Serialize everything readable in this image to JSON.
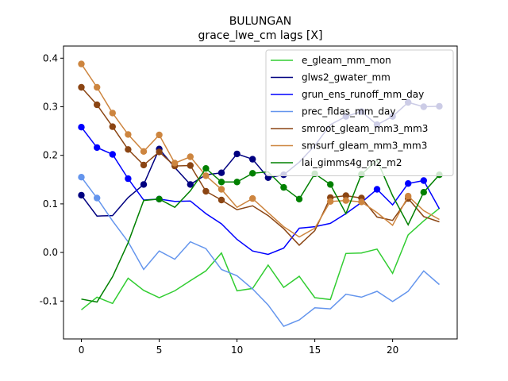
{
  "chart_data": {
    "type": "line",
    "title": "BULUNGAN",
    "subtitle": "grace_lwe_cm lags [X]",
    "xlabel": "",
    "ylabel": "",
    "xlim": [
      -1.15,
      24.15
    ],
    "ylim": [
      -0.178,
      0.425
    ],
    "xticks": [
      0,
      5,
      10,
      15,
      20
    ],
    "yticks": [
      -0.1,
      0.0,
      0.1,
      0.2,
      0.3,
      0.4
    ],
    "grid": false,
    "legend_position": "top-right",
    "x": [
      0,
      1,
      2,
      3,
      4,
      5,
      6,
      7,
      8,
      9,
      10,
      11,
      12,
      13,
      14,
      15,
      16,
      17,
      18,
      19,
      20,
      21,
      22,
      23
    ],
    "series": [
      {
        "name": "e_gleam_mm_mon",
        "color": "#32cd32",
        "values": [
          -0.118,
          -0.092,
          -0.105,
          -0.053,
          -0.078,
          -0.093,
          -0.079,
          -0.058,
          -0.038,
          -0.001,
          -0.079,
          -0.074,
          -0.026,
          -0.072,
          -0.049,
          -0.093,
          -0.097,
          -0.002,
          -0.001,
          0.007,
          -0.043,
          0.036,
          0.065,
          0.091
        ],
        "markers": []
      },
      {
        "name": "glws2_gwater_mm",
        "color": "#000080",
        "values": [
          0.118,
          0.075,
          0.076,
          0.113,
          0.14,
          0.213,
          0.175,
          0.14,
          0.16,
          0.164,
          0.203,
          0.192,
          0.154,
          0.16,
          0.186,
          0.22,
          0.263,
          0.28,
          0.29,
          0.263,
          0.28,
          0.309,
          0.3,
          0.301
        ],
        "markers": [
          0,
          4,
          5,
          7,
          9,
          10,
          11,
          12,
          13,
          17,
          18,
          19,
          20,
          21,
          22,
          23
        ]
      },
      {
        "name": "grun_ens_runoff_mm_day",
        "color": "#0000ff",
        "values": [
          0.258,
          0.216,
          0.202,
          0.152,
          0.108,
          0.11,
          0.105,
          0.106,
          0.08,
          0.059,
          0.027,
          0.003,
          -0.004,
          0.009,
          0.05,
          0.053,
          0.06,
          0.08,
          0.103,
          0.13,
          0.098,
          0.142,
          0.148,
          0.09
        ],
        "markers": [
          0,
          1,
          2,
          3,
          5,
          19,
          21,
          22
        ]
      },
      {
        "name": "prec_fldas_mm_day",
        "color": "#6495ed",
        "values": [
          0.155,
          0.112,
          0.065,
          0.022,
          -0.035,
          0.003,
          -0.014,
          0.022,
          0.008,
          -0.035,
          -0.048,
          -0.075,
          -0.108,
          -0.152,
          -0.139,
          -0.114,
          -0.116,
          -0.086,
          -0.092,
          -0.08,
          -0.101,
          -0.08,
          -0.038,
          -0.066
        ],
        "markers": [
          0,
          1
        ]
      },
      {
        "name": "smroot_gleam_mm3_mm3",
        "color": "#8b4513",
        "values": [
          0.34,
          0.304,
          0.259,
          0.212,
          0.18,
          0.207,
          0.178,
          0.179,
          0.126,
          0.108,
          0.088,
          0.096,
          0.076,
          0.049,
          0.015,
          0.045,
          0.113,
          0.117,
          0.112,
          0.073,
          0.066,
          0.111,
          0.074,
          0.063
        ],
        "markers": [
          0,
          1,
          2,
          3,
          4,
          5,
          6,
          7,
          8,
          9,
          16,
          17,
          18,
          21
        ]
      },
      {
        "name": "smsurf_gleam_mm3_mm3",
        "color": "#cd853f",
        "values": [
          0.388,
          0.34,
          0.287,
          0.243,
          0.208,
          0.242,
          0.184,
          0.197,
          0.158,
          0.13,
          0.093,
          0.111,
          0.082,
          0.053,
          0.032,
          0.05,
          0.105,
          0.107,
          0.104,
          0.082,
          0.056,
          0.116,
          0.086,
          0.068
        ],
        "markers": [
          0,
          1,
          2,
          3,
          4,
          5,
          6,
          7,
          8,
          9,
          11,
          16,
          17,
          18,
          21
        ]
      },
      {
        "name": "lai_gimms4g_m2_m2",
        "color": "#008000",
        "values": [
          -0.096,
          -0.102,
          -0.05,
          0.02,
          0.107,
          0.11,
          0.093,
          0.127,
          0.173,
          0.145,
          0.145,
          0.163,
          0.166,
          0.134,
          0.11,
          0.162,
          0.14,
          0.08,
          0.161,
          0.19,
          0.117,
          0.057,
          0.124,
          0.16
        ],
        "markers": [
          5,
          8,
          9,
          10,
          11,
          13,
          14,
          15,
          16,
          18,
          22,
          23
        ]
      }
    ]
  }
}
